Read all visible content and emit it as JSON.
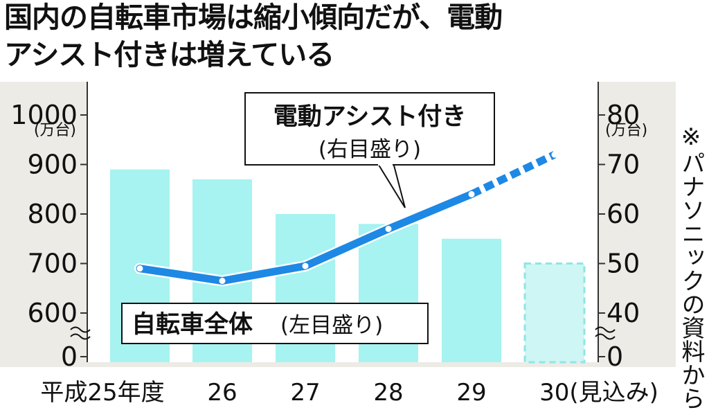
{
  "title_lines": [
    "国内の自転車市場は縮小傾向だが、電動",
    "アシスト付きは増えている"
  ],
  "note": "※パナソニックの資料から",
  "colors": {
    "bar": "#a6f3f1",
    "line": "#1e88e5",
    "plot_bg": "#ffffff",
    "frame_bg": "#ecebe6"
  },
  "chart_data": {
    "type": "bar+line",
    "categories": [
      "平成25年度",
      "26",
      "27",
      "28",
      "29",
      "30(見込み)"
    ],
    "series": [
      {
        "name": "自転車全体",
        "axis_label": "(左目盛り)",
        "type": "bar",
        "axis": "left",
        "values": [
          890,
          870,
          800,
          780,
          750,
          700
        ],
        "projected": [
          false,
          false,
          false,
          false,
          false,
          true
        ]
      },
      {
        "name": "電動アシスト付き",
        "axis_label": "(右目盛り)",
        "type": "line",
        "axis": "right",
        "values": [
          49,
          46.5,
          49.5,
          57,
          64,
          72
        ],
        "projected": [
          false,
          false,
          false,
          false,
          false,
          true
        ]
      }
    ],
    "left_axis": {
      "ticks": [
        "0",
        "600",
        "700",
        "800",
        "900",
        "1000"
      ],
      "unit": "(万台)",
      "ylim": [
        550,
        1000
      ],
      "broken": true
    },
    "right_axis": {
      "ticks": [
        "0",
        "40",
        "50",
        "60",
        "70",
        "80"
      ],
      "unit": "(万台)",
      "ylim": [
        35,
        80
      ],
      "broken": true
    },
    "x_axis": {
      "tick_labels": [
        "平成25年度",
        "26",
        "27",
        "28",
        "29",
        "30(見込み)"
      ]
    }
  }
}
